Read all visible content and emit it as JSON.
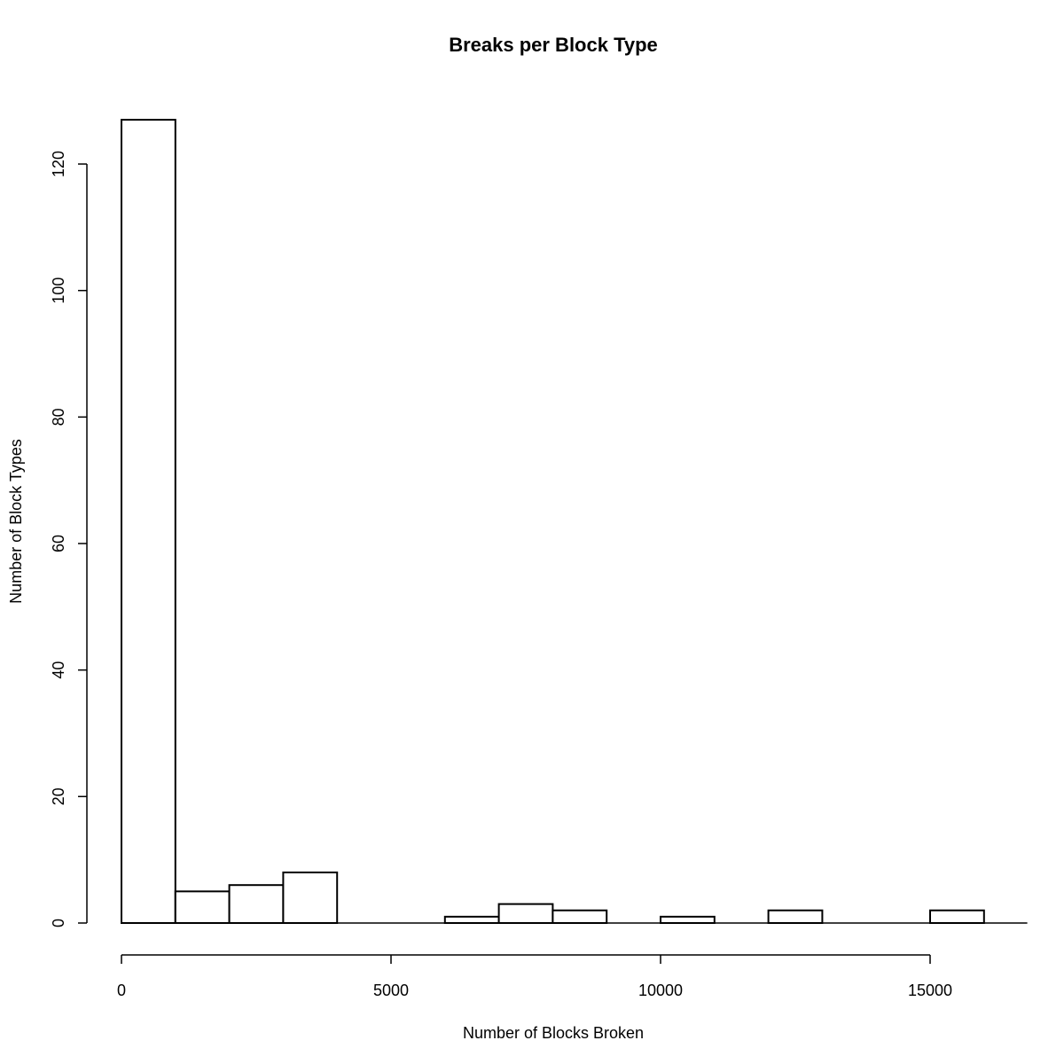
{
  "chart_data": {
    "type": "bar",
    "title": "Breaks per Block Type",
    "xlabel": "Number of Blocks Broken",
    "ylabel": "Number of Block Types",
    "bin_width": 1000,
    "bins": [
      {
        "x0": 0,
        "x1": 1000,
        "count": 127
      },
      {
        "x0": 1000,
        "x1": 2000,
        "count": 5
      },
      {
        "x0": 2000,
        "x1": 3000,
        "count": 6
      },
      {
        "x0": 3000,
        "x1": 4000,
        "count": 8
      },
      {
        "x0": 4000,
        "x1": 5000,
        "count": 0
      },
      {
        "x0": 5000,
        "x1": 6000,
        "count": 0
      },
      {
        "x0": 6000,
        "x1": 7000,
        "count": 1
      },
      {
        "x0": 7000,
        "x1": 8000,
        "count": 3
      },
      {
        "x0": 8000,
        "x1": 9000,
        "count": 2
      },
      {
        "x0": 9000,
        "x1": 10000,
        "count": 0
      },
      {
        "x0": 10000,
        "x1": 11000,
        "count": 1
      },
      {
        "x0": 11000,
        "x1": 12000,
        "count": 0
      },
      {
        "x0": 12000,
        "x1": 13000,
        "count": 2
      },
      {
        "x0": 13000,
        "x1": 14000,
        "count": 0
      },
      {
        "x0": 14000,
        "x1": 15000,
        "count": 0
      },
      {
        "x0": 15000,
        "x1": 16000,
        "count": 2
      },
      {
        "x0": 16000,
        "x1": 17000,
        "count": 0
      }
    ],
    "x_ticks": [
      0,
      5000,
      10000,
      15000
    ],
    "y_ticks": [
      0,
      20,
      40,
      60,
      80,
      100,
      120
    ],
    "xlim": [
      0,
      15000
    ],
    "ylim": [
      0,
      120
    ],
    "grid": false
  }
}
